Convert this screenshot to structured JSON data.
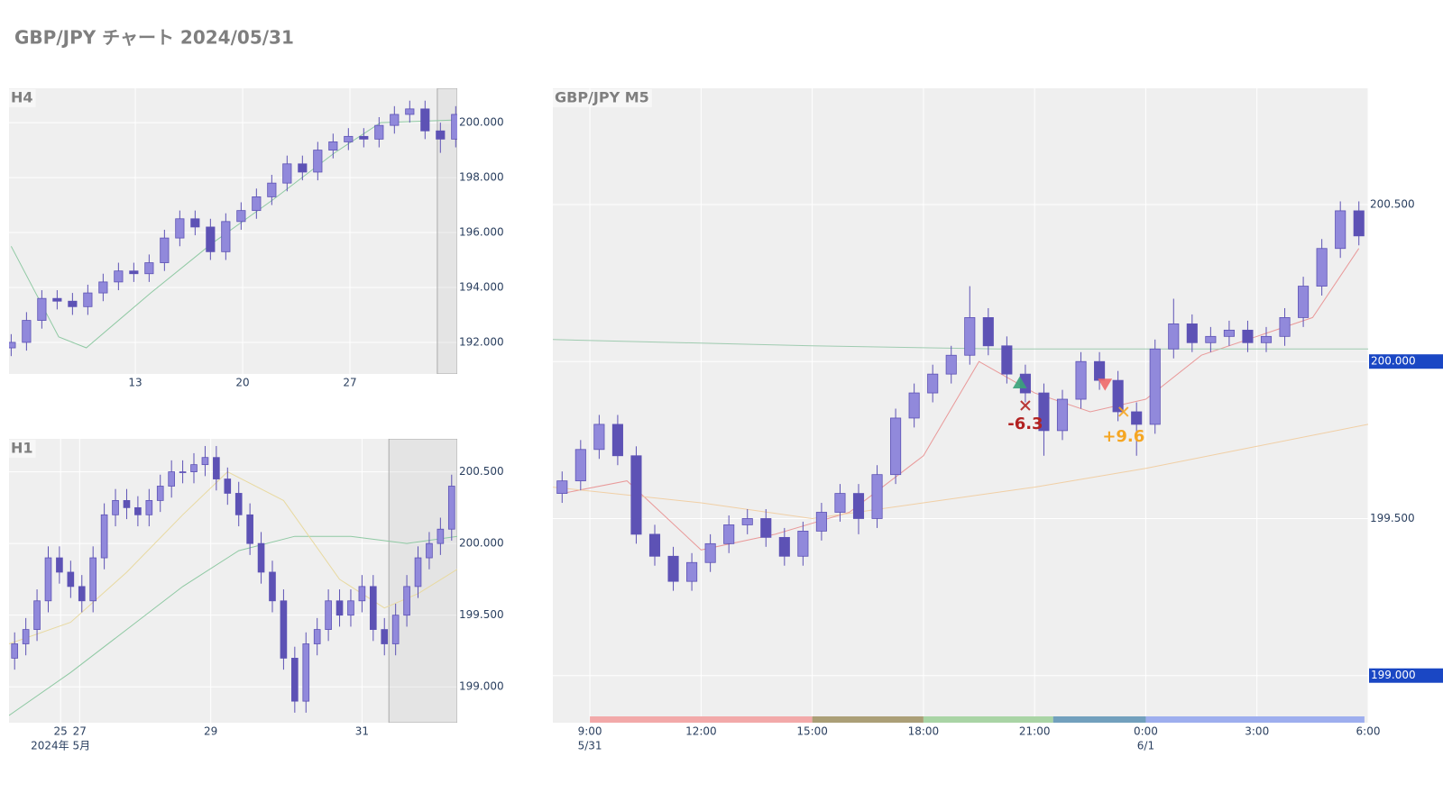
{
  "title": "GBP/JPY チャート 2024/05/31",
  "chart_data": [
    {
      "type": "candlestick",
      "title": "H4",
      "x": [
        4.9,
        5.9,
        6.9,
        7.9,
        8.9,
        9.9,
        10.9,
        11.9,
        12.9,
        13.9,
        14.9,
        15.9,
        16.9,
        17.9,
        18.9,
        19.9,
        20.9,
        21.9,
        22.9,
        23.9,
        24.9,
        25.9,
        26.9,
        27.9,
        28.9,
        29.9,
        30.9,
        31.9,
        32.9,
        33.9
      ],
      "candles": {
        "open": [
          191.8,
          192.0,
          192.8,
          193.6,
          193.5,
          193.3,
          193.8,
          194.2,
          194.6,
          194.5,
          194.9,
          195.8,
          196.5,
          196.2,
          195.3,
          196.4,
          196.8,
          197.3,
          197.8,
          198.5,
          198.2,
          199.0,
          199.3,
          199.5,
          199.4,
          199.9,
          200.3,
          200.5,
          199.7,
          199.4
        ],
        "high": [
          192.3,
          193.1,
          193.9,
          193.9,
          193.8,
          194.1,
          194.5,
          194.9,
          194.9,
          195.2,
          196.1,
          196.8,
          196.8,
          196.5,
          196.7,
          197.1,
          197.6,
          198.1,
          198.8,
          198.8,
          199.3,
          199.6,
          199.8,
          199.8,
          200.2,
          200.6,
          200.8,
          200.8,
          200.0,
          200.6
        ],
        "low": [
          191.5,
          191.7,
          192.5,
          193.2,
          193.0,
          193.0,
          193.5,
          193.9,
          194.2,
          194.2,
          194.6,
          195.5,
          195.9,
          195.0,
          195.0,
          196.1,
          196.5,
          197.0,
          197.5,
          197.9,
          197.9,
          198.7,
          199.0,
          199.1,
          199.1,
          199.6,
          200.0,
          199.4,
          198.9,
          199.1
        ],
        "close": [
          192.0,
          192.8,
          193.6,
          193.5,
          193.3,
          193.8,
          194.2,
          194.6,
          194.5,
          194.9,
          195.8,
          196.5,
          196.2,
          195.3,
          196.4,
          196.8,
          197.3,
          197.8,
          198.5,
          198.2,
          199.0,
          199.3,
          199.5,
          199.4,
          199.9,
          200.3,
          200.5,
          199.7,
          199.4,
          200.3
        ]
      },
      "up_color": "#9189db",
      "down_color": "#5d52b5",
      "lines": [
        {
          "color": "#8fc9a3",
          "x": [
            4.9,
            8,
            9.8,
            14,
            18,
            22,
            26,
            29,
            33.9
          ],
          "values": [
            195.5,
            192.2,
            191.8,
            193.8,
            195.6,
            197.2,
            198.9,
            200.0,
            200.1
          ]
        }
      ],
      "highlight": [
        32.7,
        34.0
      ],
      "xlim": [
        4.76,
        34.0
      ],
      "xticks": [
        13,
        20,
        27
      ],
      "ylim": [
        190.85,
        201.25
      ],
      "yticks": [
        {
          "value": 192,
          "label": "192.000"
        },
        {
          "value": 194,
          "label": "194.000"
        },
        {
          "value": 196,
          "label": "196.000"
        },
        {
          "value": 198,
          "label": "198.000"
        },
        {
          "value": 200,
          "label": "200.000"
        }
      ],
      "grid": true
    },
    {
      "type": "candlestick",
      "title": "H1",
      "x": [
        0,
        1,
        2,
        3,
        4,
        5,
        6,
        7,
        8,
        9,
        10,
        11,
        12,
        13,
        14,
        15,
        16,
        17,
        18,
        19,
        20,
        21,
        22,
        23,
        24,
        25,
        26,
        27,
        28,
        29,
        30,
        31,
        32,
        33,
        34,
        35,
        36,
        37,
        38,
        39
      ],
      "candles": {
        "open": [
          199.2,
          199.3,
          199.4,
          199.6,
          199.9,
          199.8,
          199.7,
          199.6,
          199.9,
          200.2,
          200.3,
          200.25,
          200.2,
          200.3,
          200.4,
          200.5,
          200.5,
          200.55,
          200.6,
          200.45,
          200.35,
          200.2,
          200.0,
          199.8,
          199.6,
          199.2,
          198.9,
          199.3,
          199.4,
          199.6,
          199.5,
          199.6,
          199.7,
          199.4,
          199.3,
          199.5,
          199.7,
          199.9,
          200.0,
          200.1
        ],
        "high": [
          199.38,
          199.48,
          199.68,
          199.98,
          199.98,
          199.88,
          199.78,
          199.98,
          200.28,
          200.38,
          200.38,
          200.33,
          200.38,
          200.48,
          200.58,
          200.58,
          200.63,
          200.68,
          200.68,
          200.53,
          200.43,
          200.28,
          200.08,
          199.88,
          199.68,
          199.28,
          199.38,
          199.48,
          199.68,
          199.68,
          199.68,
          199.78,
          199.78,
          199.48,
          199.58,
          199.78,
          199.98,
          200.08,
          200.18,
          200.48
        ],
        "low": [
          199.12,
          199.22,
          199.32,
          199.52,
          199.72,
          199.62,
          199.52,
          199.52,
          199.82,
          200.12,
          200.17,
          200.12,
          200.12,
          200.22,
          200.32,
          200.42,
          200.42,
          200.47,
          200.37,
          200.27,
          200.12,
          199.92,
          199.72,
          199.52,
          199.12,
          198.82,
          198.82,
          199.22,
          199.32,
          199.42,
          199.42,
          199.52,
          199.32,
          199.22,
          199.22,
          199.42,
          199.62,
          199.82,
          199.92,
          200.02
        ],
        "close": [
          199.3,
          199.4,
          199.6,
          199.9,
          199.8,
          199.7,
          199.6,
          199.9,
          200.2,
          200.3,
          200.25,
          200.2,
          200.3,
          200.4,
          200.5,
          200.5,
          200.55,
          200.6,
          200.45,
          200.35,
          200.2,
          200.0,
          199.8,
          199.6,
          199.2,
          198.9,
          199.3,
          199.4,
          199.6,
          199.5,
          199.6,
          199.7,
          199.4,
          199.3,
          199.5,
          199.7,
          199.9,
          200.0,
          200.1,
          200.4
        ]
      },
      "up_color": "#9189db",
      "down_color": "#5d52b5",
      "lines": [
        {
          "color": "#8fc9a3",
          "x": [
            -0.5,
            5,
            10,
            15,
            20,
            25,
            30,
            35,
            39.5
          ],
          "values": [
            198.8,
            199.1,
            199.4,
            199.7,
            199.95,
            200.05,
            200.05,
            200.0,
            200.05
          ]
        },
        {
          "color": "#e8d9a0",
          "x": [
            -0.5,
            5,
            10,
            15,
            19,
            24,
            29,
            33,
            36,
            39.5
          ],
          "values": [
            199.3,
            199.45,
            199.8,
            200.2,
            200.5,
            200.3,
            199.75,
            199.55,
            199.65,
            199.82
          ]
        }
      ],
      "highlight": [
        33.4,
        39.5
      ],
      "xlim": [
        -0.5,
        39.5
      ],
      "xticks": [
        {
          "value": 4.1,
          "label": "25"
        },
        {
          "value": 5.8,
          "label": "27"
        },
        {
          "value": 17.5,
          "label": "29"
        },
        {
          "value": 31.0,
          "label": "31"
        }
      ],
      "xtick_sublabels": [
        {
          "value": 4.1,
          "label": "2024年 5月"
        }
      ],
      "ylim": [
        198.75,
        200.73
      ],
      "yticks": [
        {
          "value": 199,
          "label": "199.000"
        },
        {
          "value": 199.5,
          "label": "199.500"
        },
        {
          "value": 200,
          "label": "200.000"
        },
        {
          "value": 200.5,
          "label": "200.500"
        }
      ],
      "grid": true
    },
    {
      "type": "candlestick",
      "title": "GBP/JPY M5",
      "x": [
        8.25,
        8.75,
        9.25,
        9.75,
        10.25,
        10.75,
        11.25,
        11.75,
        12.25,
        12.75,
        13.25,
        13.75,
        14.25,
        14.75,
        15.25,
        15.75,
        16.25,
        16.75,
        17.25,
        17.75,
        18.25,
        18.75,
        19.25,
        19.75,
        20.25,
        20.75,
        21.25,
        21.75,
        22.25,
        22.75,
        23.25,
        23.75,
        24.25,
        24.75,
        25.25,
        25.75,
        26.25,
        26.75,
        27.25,
        27.75,
        28.25,
        28.75,
        29.25,
        29.75
      ],
      "candles": {
        "open": [
          199.58,
          199.62,
          199.72,
          199.8,
          199.7,
          199.45,
          199.38,
          199.3,
          199.36,
          199.42,
          199.48,
          199.5,
          199.44,
          199.38,
          199.46,
          199.52,
          199.58,
          199.5,
          199.64,
          199.82,
          199.9,
          199.96,
          200.02,
          200.14,
          200.05,
          199.96,
          199.9,
          199.78,
          199.88,
          200.0,
          199.94,
          199.84,
          199.8,
          200.04,
          200.12,
          200.06,
          200.08,
          200.1,
          200.06,
          200.08,
          200.14,
          200.24,
          200.36,
          200.48
        ],
        "high": [
          199.65,
          199.75,
          199.83,
          199.83,
          199.73,
          199.48,
          199.41,
          199.39,
          199.45,
          199.51,
          199.53,
          199.53,
          199.47,
          199.49,
          199.55,
          199.61,
          199.61,
          199.67,
          199.85,
          199.93,
          199.99,
          200.05,
          200.24,
          200.17,
          200.08,
          199.99,
          199.93,
          199.91,
          200.03,
          200.03,
          199.97,
          199.87,
          200.07,
          200.2,
          200.15,
          200.11,
          200.13,
          200.13,
          200.11,
          200.17,
          200.27,
          200.39,
          200.51,
          200.51
        ],
        "low": [
          199.55,
          199.59,
          199.69,
          199.67,
          199.42,
          199.35,
          199.27,
          199.27,
          199.33,
          199.39,
          199.45,
          199.41,
          199.35,
          199.35,
          199.43,
          199.49,
          199.45,
          199.47,
          199.61,
          199.79,
          199.87,
          199.93,
          199.99,
          200.02,
          199.93,
          199.87,
          199.7,
          199.75,
          199.85,
          199.91,
          199.81,
          199.7,
          199.77,
          200.01,
          200.03,
          200.03,
          200.05,
          200.03,
          200.03,
          200.05,
          200.11,
          200.21,
          200.33,
          200.37
        ],
        "close": [
          199.62,
          199.72,
          199.8,
          199.7,
          199.45,
          199.38,
          199.3,
          199.36,
          199.42,
          199.48,
          199.5,
          199.44,
          199.38,
          199.46,
          199.52,
          199.58,
          199.5,
          199.64,
          199.82,
          199.9,
          199.96,
          200.02,
          200.14,
          200.05,
          199.96,
          199.9,
          199.78,
          199.88,
          200.0,
          199.94,
          199.84,
          199.8,
          200.04,
          200.12,
          200.06,
          200.08,
          200.1,
          200.06,
          200.08,
          200.14,
          200.24,
          200.36,
          200.48,
          200.4
        ]
      },
      "up_color": "#9189db",
      "down_color": "#5d52b5",
      "lines": [
        {
          "color": "#e99a9a",
          "x": [
            8.25,
            10,
            12,
            14,
            16,
            18,
            19.5,
            21,
            22.5,
            24,
            25.5,
            27,
            28.5,
            29.75
          ],
          "values": [
            199.58,
            199.62,
            199.4,
            199.45,
            199.52,
            199.7,
            200.0,
            199.9,
            199.84,
            199.88,
            200.02,
            200.08,
            200.14,
            200.36
          ]
        },
        {
          "color": "#9fcbb0",
          "x": [
            8.0,
            15,
            20,
            30
          ],
          "values": [
            200.07,
            200.05,
            200.04,
            200.04
          ]
        },
        {
          "color": "#f0cfa5",
          "x": [
            8.0,
            12,
            15,
            18,
            21,
            24,
            27,
            30
          ],
          "values": [
            199.6,
            199.55,
            199.5,
            199.55,
            199.6,
            199.66,
            199.73,
            199.8
          ]
        }
      ],
      "sessions": [
        {
          "start": 9,
          "end": 15,
          "color": "#f2a9a9"
        },
        {
          "start": 15,
          "end": 18,
          "color": "#ab9f77"
        },
        {
          "start": 18,
          "end": 21.5,
          "color": "#a9d4a5"
        },
        {
          "start": 21.5,
          "end": 24,
          "color": "#72a0bd"
        },
        {
          "start": 24,
          "end": 29.9,
          "color": "#9eaeee"
        }
      ],
      "trades": [
        {
          "x": 20.6,
          "y": 199.93,
          "marker": "triangle-up",
          "color": "#3aa37a"
        },
        {
          "x": 22.9,
          "y": 199.93,
          "marker": "triangle-down",
          "color": "#f06b6b"
        },
        {
          "x": 20.75,
          "y": 199.86,
          "marker": "x",
          "color": "#b22222"
        },
        {
          "x": 23.4,
          "y": 199.84,
          "marker": "x",
          "color": "#f5a623"
        }
      ],
      "annotations": [
        {
          "x": 20.75,
          "y": 199.8,
          "label": "-6.3",
          "color": "#b22222"
        },
        {
          "x": 23.4,
          "y": 199.76,
          "label": "+9.6",
          "color": "#f5a623"
        }
      ],
      "xlim": [
        8.0,
        30.0
      ],
      "xticks": [
        {
          "value": 9,
          "label": "9:00"
        },
        {
          "value": 12,
          "label": "12:00"
        },
        {
          "value": 15,
          "label": "15:00"
        },
        {
          "value": 18,
          "label": "18:00"
        },
        {
          "value": 21,
          "label": "21:00"
        },
        {
          "value": 24,
          "label": "0:00"
        },
        {
          "value": 27,
          "label": "3:00"
        },
        {
          "value": 30,
          "label": "6:00"
        }
      ],
      "xtick_sublabels": [
        {
          "value": 9,
          "label": "5/31"
        },
        {
          "value": 24,
          "label": "6/1"
        }
      ],
      "ylim": [
        198.85,
        200.87
      ],
      "yticks": [
        {
          "value": 199.5,
          "label": "199.500"
        },
        {
          "value": 200.5,
          "label": "200.500"
        }
      ],
      "price_tags": [
        {
          "value": 200,
          "label": "200.000",
          "color": "#1a47c4"
        },
        {
          "value": 199,
          "label": "199.000",
          "color": "#1a47c4"
        }
      ],
      "grid": true
    }
  ]
}
